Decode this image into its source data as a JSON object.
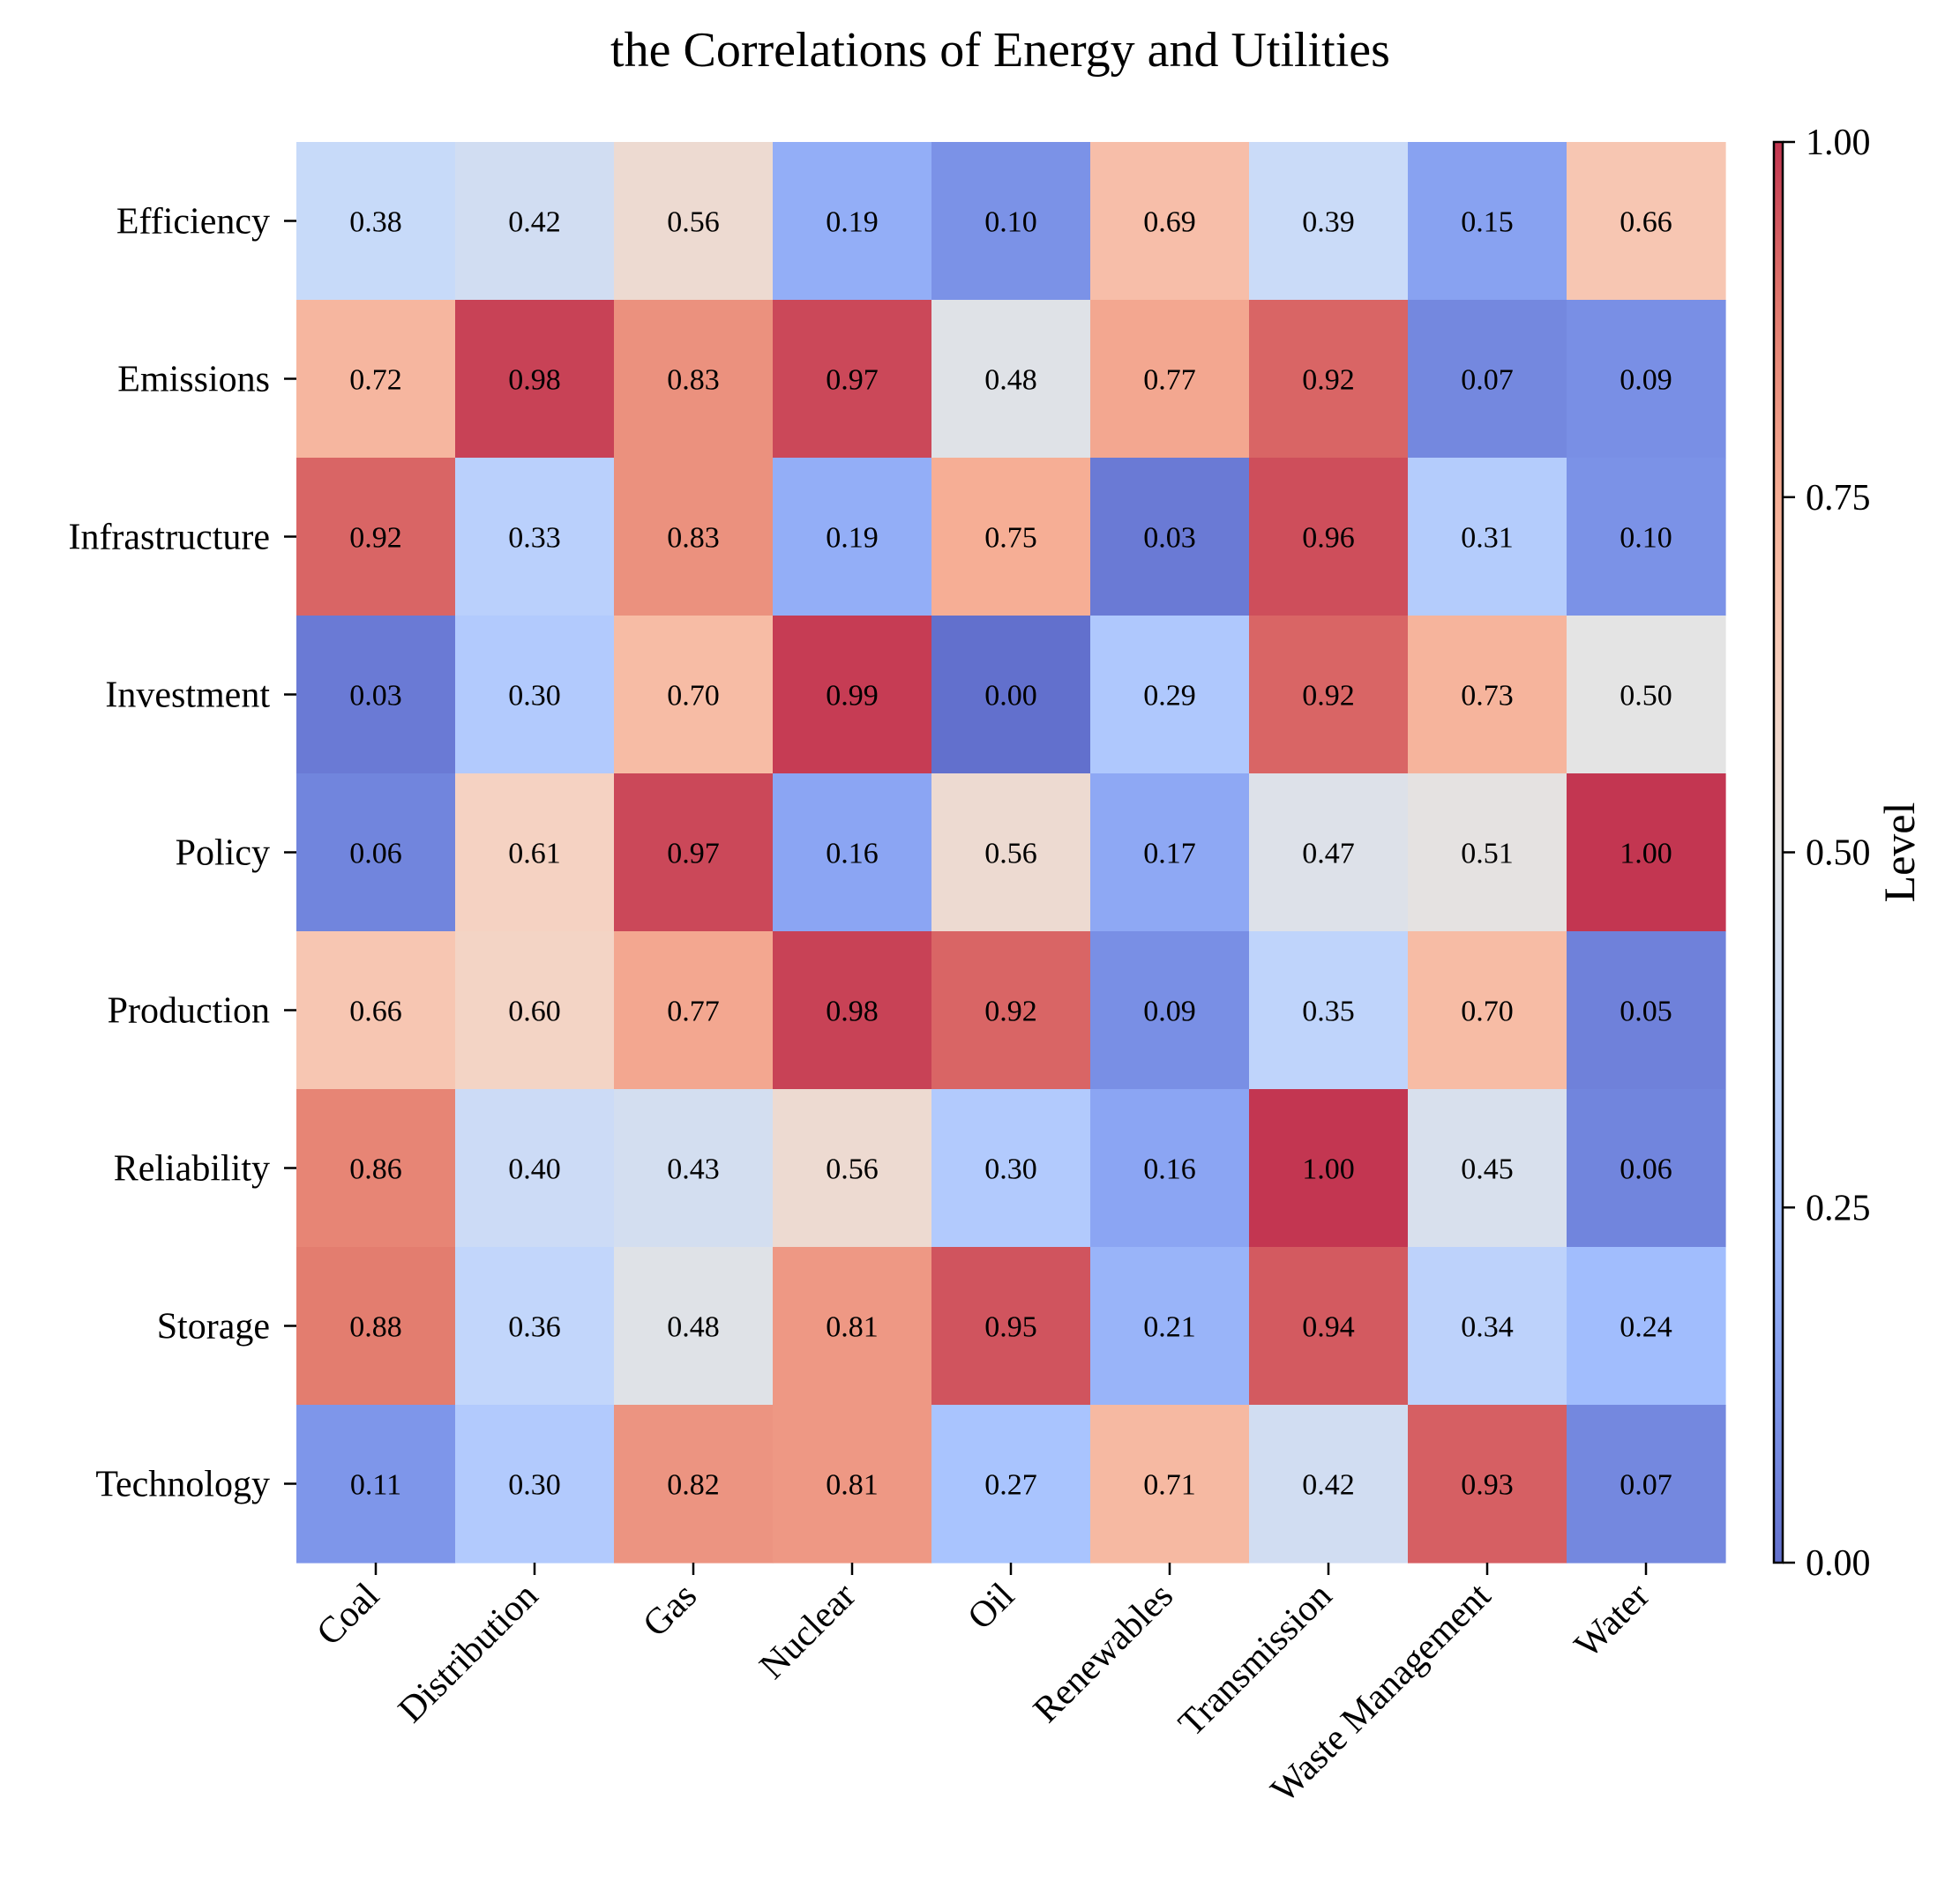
{
  "chart_data": {
    "type": "heatmap",
    "title": "the Correlations of Energy and Utilities",
    "xlabel": "",
    "ylabel": "",
    "x_categories": [
      "Coal",
      "Distribution",
      "Gas",
      "Nuclear",
      "Oil",
      "Renewables",
      "Transmission",
      "Waste Management",
      "Water"
    ],
    "y_categories": [
      "Efficiency",
      "Emissions",
      "Infrastructure",
      "Investment",
      "Policy",
      "Production",
      "Reliability",
      "Storage",
      "Technology"
    ],
    "values": [
      [
        0.38,
        0.42,
        0.56,
        0.19,
        0.1,
        0.69,
        0.39,
        0.15,
        0.66
      ],
      [
        0.72,
        0.98,
        0.83,
        0.97,
        0.48,
        0.77,
        0.92,
        0.07,
        0.09
      ],
      [
        0.92,
        0.33,
        0.83,
        0.19,
        0.75,
        0.03,
        0.96,
        0.31,
        0.1
      ],
      [
        0.03,
        0.3,
        0.7,
        0.99,
        0.0,
        0.29,
        0.92,
        0.73,
        0.5
      ],
      [
        0.06,
        0.61,
        0.97,
        0.16,
        0.56,
        0.17,
        0.47,
        0.51,
        1.0
      ],
      [
        0.66,
        0.6,
        0.77,
        0.98,
        0.92,
        0.09,
        0.35,
        0.7,
        0.05
      ],
      [
        0.86,
        0.4,
        0.43,
        0.56,
        0.3,
        0.16,
        1.0,
        0.45,
        0.06
      ],
      [
        0.88,
        0.36,
        0.48,
        0.81,
        0.95,
        0.21,
        0.94,
        0.34,
        0.24
      ],
      [
        0.11,
        0.3,
        0.82,
        0.81,
        0.27,
        0.71,
        0.42,
        0.93,
        0.07
      ]
    ],
    "value_range": [
      0,
      1
    ],
    "colormap": "coolwarm",
    "cell_alpha": 0.8,
    "grid": false,
    "colorbar": {
      "label": "Level",
      "ticks": [
        0,
        0.25,
        0.5,
        0.75,
        1
      ],
      "tick_labels": [
        "0.00",
        "0.25",
        "0.50",
        "0.75",
        "1.00"
      ],
      "placement": "right"
    }
  }
}
